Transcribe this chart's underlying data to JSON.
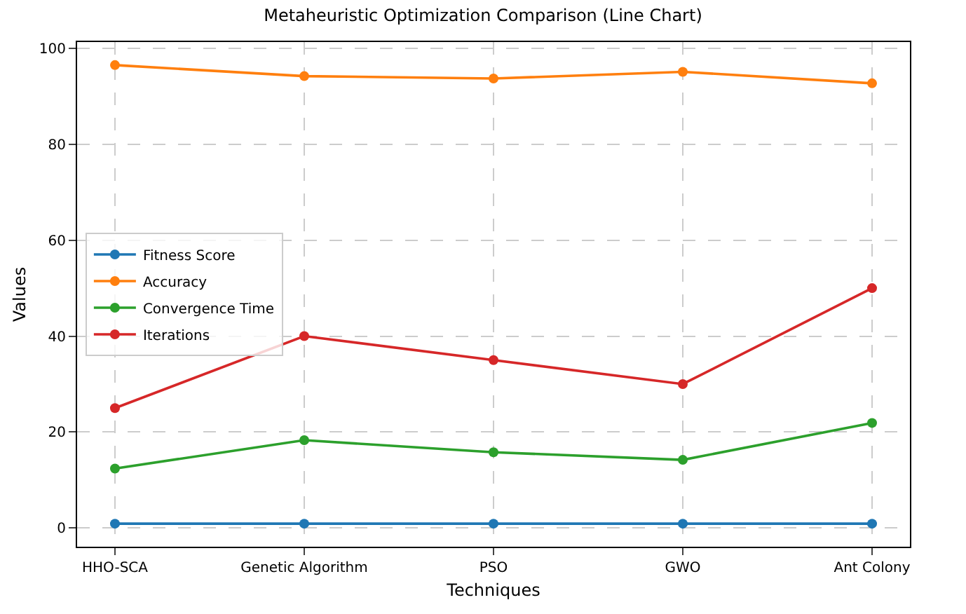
{
  "chart_data": {
    "type": "line",
    "title": "Metaheuristic Optimization Comparison (Line Chart)",
    "xlabel": "Techniques",
    "ylabel": "Values",
    "categories": [
      "HHO-SCA",
      "Genetic Algorithm",
      "PSO",
      "GWO",
      "Ant Colony"
    ],
    "series": [
      {
        "name": "Fitness Score",
        "color": "#1f77b4",
        "values": [
          0.9,
          0.9,
          0.9,
          0.9,
          0.9
        ]
      },
      {
        "name": "Accuracy",
        "color": "#ff7f0e",
        "values": [
          96.5,
          94.2,
          93.7,
          95.1,
          92.7
        ]
      },
      {
        "name": "Convergence Time",
        "color": "#2ca02c",
        "values": [
          12.4,
          18.3,
          15.8,
          14.2,
          21.9
        ]
      },
      {
        "name": "Iterations",
        "color": "#d62728",
        "values": [
          25,
          40,
          35,
          30,
          50
        ]
      }
    ],
    "ylim": [
      -3.9,
      101.3
    ],
    "yticks": [
      0,
      20,
      40,
      60,
      80,
      100
    ],
    "grid": true,
    "legend": "left",
    "marker": "circle",
    "line_style": "solid"
  }
}
